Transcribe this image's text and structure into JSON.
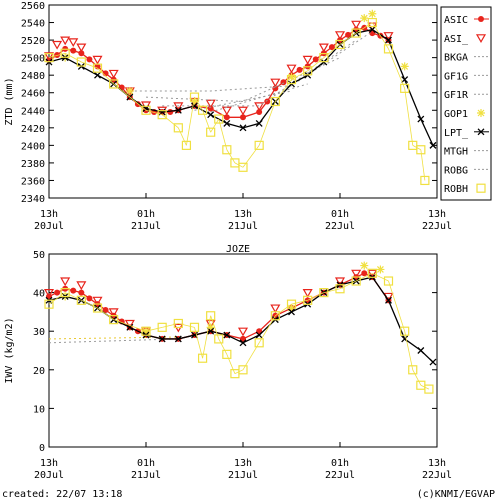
{
  "chart_data": [
    {
      "type": "line",
      "ylabel": "ZTD (mm)",
      "ylim": [
        2340,
        2560
      ],
      "yticks": [
        2340,
        2360,
        2380,
        2400,
        2420,
        2440,
        2460,
        2480,
        2500,
        2520,
        2540,
        2560
      ],
      "xlim": [
        0,
        48
      ],
      "xticks": [
        {
          "value": 0,
          "label": "13h"
        },
        {
          "value": 12,
          "label": "01h"
        },
        {
          "value": 24,
          "label": "13h"
        },
        {
          "value": 36,
          "label": "01h"
        },
        {
          "value": 48,
          "label": "13h"
        }
      ],
      "xtick_dates": [
        "20Jul",
        "21Jul",
        "21Jul",
        "22Jul",
        "22Jul"
      ],
      "series": [
        {
          "name": "ASIC",
          "color": "#e8241c",
          "marker": "circle",
          "line": true,
          "x": [
            0,
            1,
            2,
            3,
            4,
            5,
            6,
            7,
            8,
            9,
            10,
            11,
            12,
            13,
            14,
            15,
            16,
            18,
            20,
            22,
            24,
            26,
            27,
            28,
            29,
            30,
            31,
            32,
            33,
            34,
            35,
            36,
            37,
            38,
            39,
            40,
            41,
            42
          ],
          "values": [
            2497,
            2503,
            2510,
            2508,
            2505,
            2498,
            2490,
            2482,
            2475,
            2466,
            2455,
            2447,
            2440,
            2438,
            2438,
            2438,
            2440,
            2445,
            2442,
            2432,
            2432,
            2438,
            2450,
            2465,
            2472,
            2480,
            2486,
            2490,
            2498,
            2505,
            2512,
            2520,
            2526,
            2532,
            2534,
            2528,
            2525,
            2520
          ]
        },
        {
          "name": "ASI_",
          "color": "#e8241c",
          "marker": "tri",
          "line": false,
          "x": [
            0,
            1,
            2,
            3,
            4,
            6,
            8,
            10,
            12,
            14,
            16,
            18,
            20,
            22,
            24,
            26,
            28,
            30,
            32,
            34,
            36,
            38,
            40,
            42
          ],
          "values": [
            2502,
            2515,
            2520,
            2518,
            2512,
            2498,
            2482,
            2462,
            2446,
            2440,
            2445,
            2450,
            2448,
            2440,
            2440,
            2445,
            2472,
            2488,
            2498,
            2512,
            2526,
            2538,
            2536,
            2525
          ]
        },
        {
          "name": "BKGA",
          "color": "#999999",
          "marker": "none",
          "line": true,
          "dash": true,
          "x": [
            10,
            20,
            30,
            40
          ],
          "values": [
            2462,
            2462,
            2468,
            2530
          ]
        },
        {
          "name": "GF1G",
          "color": "#999999",
          "marker": "none",
          "line": true,
          "dash": true,
          "x": [
            12,
            24,
            36
          ],
          "values": [
            2455,
            2450,
            2500
          ]
        },
        {
          "name": "GF1R",
          "color": "#999999",
          "marker": "none",
          "line": true,
          "dash": true,
          "x": [
            14,
            26,
            38
          ],
          "values": [
            2445,
            2445,
            2520
          ]
        },
        {
          "name": "GOP1",
          "color": "#f0e040",
          "marker": "star",
          "line": false,
          "x": [
            2,
            10,
            18,
            30,
            39,
            40,
            44
          ],
          "values": [
            2500,
            2462,
            2450,
            2478,
            2545,
            2550,
            2490
          ]
        },
        {
          "name": "LPT_",
          "color": "#000000",
          "marker": "x",
          "line": true,
          "x": [
            0,
            2,
            4,
            6,
            8,
            10,
            12,
            14,
            16,
            18,
            20,
            22,
            24,
            26,
            28,
            30,
            32,
            34,
            36,
            38,
            40,
            42,
            44,
            46,
            47.5
          ],
          "values": [
            2495,
            2500,
            2490,
            2480,
            2470,
            2455,
            2442,
            2438,
            2440,
            2445,
            2435,
            2425,
            2420,
            2425,
            2450,
            2470,
            2480,
            2495,
            2515,
            2528,
            2532,
            2520,
            2475,
            2430,
            2400
          ]
        },
        {
          "name": "MTGH",
          "color": "#999999",
          "marker": "none",
          "line": true,
          "dash": true,
          "x": [
            18,
            30
          ],
          "values": [
            2440,
            2462
          ]
        },
        {
          "name": "ROBG",
          "color": "#999999",
          "marker": "none",
          "line": true,
          "dash": true,
          "x": [
            20,
            32
          ],
          "values": [
            2438,
            2470
          ]
        },
        {
          "name": "ROBH",
          "color": "#f0e040",
          "marker": "square",
          "line": false,
          "x": [
            0,
            2,
            4,
            6,
            8,
            12,
            14,
            16,
            17,
            18,
            19,
            20,
            21,
            22,
            23,
            24,
            26,
            28,
            30,
            32,
            34,
            36,
            38,
            40,
            42,
            44,
            45,
            46,
            46.5
          ],
          "values": [
            2500,
            2505,
            2495,
            2488,
            2470,
            2440,
            2435,
            2420,
            2400,
            2455,
            2440,
            2415,
            2430,
            2395,
            2380,
            2375,
            2400,
            2450,
            2475,
            2485,
            2500,
            2515,
            2528,
            2540,
            2510,
            2465,
            2400,
            2395,
            2360
          ]
        }
      ]
    },
    {
      "type": "line",
      "ylabel": "IWV (kg/m2)",
      "ylim": [
        0,
        50
      ],
      "yticks": [
        0,
        10,
        20,
        30,
        40,
        50
      ],
      "xlim": [
        0,
        48
      ],
      "xticks": [
        {
          "value": 0,
          "label": "13h"
        },
        {
          "value": 12,
          "label": "01h"
        },
        {
          "value": 24,
          "label": "13h"
        },
        {
          "value": 36,
          "label": "01h"
        },
        {
          "value": 48,
          "label": "13h"
        }
      ],
      "xtick_dates": [
        "20Jul",
        "21Jul",
        "21Jul",
        "22Jul",
        "22Jul"
      ],
      "series": [
        {
          "name": "ASIC",
          "color": "#e8241c",
          "marker": "circle",
          "line": true,
          "x": [
            0,
            1,
            2,
            3,
            4,
            5,
            6,
            7,
            8,
            9,
            10,
            11,
            12,
            14,
            16,
            18,
            20,
            22,
            24,
            26,
            28,
            30,
            32,
            34,
            36,
            38,
            39,
            40,
            42
          ],
          "values": [
            39,
            40,
            41,
            40.5,
            40,
            38.5,
            37,
            35.5,
            34,
            32.5,
            31,
            30,
            29,
            28,
            28,
            29,
            30,
            29,
            28,
            30,
            34,
            36,
            38,
            40,
            42,
            44,
            45,
            44,
            38
          ]
        },
        {
          "name": "ASI_",
          "color": "#e8241c",
          "marker": "tri",
          "line": false,
          "x": [
            0,
            2,
            4,
            6,
            8,
            10,
            12,
            16,
            20,
            24,
            28,
            32,
            36,
            38,
            40,
            42
          ],
          "values": [
            40,
            43,
            42,
            38,
            35,
            32,
            30,
            31,
            32,
            30,
            36,
            40,
            43,
            45,
            45,
            39
          ]
        },
        {
          "name": "BKGA",
          "color": "#999999",
          "marker": "none",
          "line": true,
          "dash": true,
          "x": [
            0,
            16
          ],
          "values": [
            27,
            28
          ]
        },
        {
          "name": "GF1G",
          "color": "#e8c830",
          "marker": "none",
          "line": true,
          "dash": true,
          "x": [
            0,
            16
          ],
          "values": [
            28,
            28.5
          ]
        },
        {
          "name": "GOP1",
          "color": "#f0e040",
          "marker": "star",
          "line": false,
          "x": [
            2,
            12,
            20,
            30,
            39,
            41
          ],
          "values": [
            39,
            30,
            31,
            36,
            47,
            46
          ]
        },
        {
          "name": "LPT_",
          "color": "#000000",
          "marker": "x",
          "line": true,
          "x": [
            0,
            2,
            4,
            6,
            8,
            10,
            12,
            14,
            16,
            18,
            20,
            22,
            24,
            26,
            28,
            30,
            32,
            34,
            36,
            38,
            40,
            42,
            44,
            46,
            47.5
          ],
          "values": [
            38,
            39,
            38,
            36,
            33,
            31,
            29,
            28,
            28,
            29,
            30,
            29,
            27,
            29,
            33,
            35,
            37,
            40,
            42,
            43,
            44,
            38,
            28,
            25,
            22
          ]
        },
        {
          "name": "ROBH",
          "color": "#f0e040",
          "marker": "square",
          "line": false,
          "x": [
            0,
            2,
            4,
            6,
            8,
            12,
            14,
            16,
            18,
            19,
            20,
            21,
            22,
            23,
            24,
            26,
            28,
            30,
            32,
            34,
            36,
            38,
            40,
            42,
            44,
            45,
            46,
            47
          ],
          "values": [
            37,
            40,
            38,
            36,
            33,
            30,
            31,
            32,
            31,
            23,
            34,
            28,
            24,
            19,
            20,
            27,
            34,
            37,
            38,
            40,
            41,
            43,
            45,
            43,
            30,
            20,
            16,
            15
          ]
        }
      ]
    }
  ],
  "station": "JOZE",
  "footer": {
    "created": "created: 22/07 13:18",
    "credit": "(c)KNMI/EGVAP"
  }
}
